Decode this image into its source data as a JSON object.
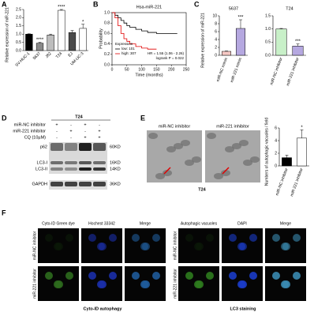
{
  "panel_labels": [
    "A",
    "B",
    "C",
    "D",
    "E",
    "F"
  ],
  "chart_data": [
    {
      "type": "bar",
      "ylabel": "Relative expression of miR-221",
      "categories": [
        "SV-HUC-1",
        "5637",
        "J82",
        "T24",
        "EJ",
        "UM-UC-3"
      ],
      "values": [
        1.0,
        0.45,
        0.95,
        2.45,
        1.1,
        1.35
      ],
      "errors": [
        0.02,
        0.05,
        0.05,
        0.05,
        0.12,
        0.25
      ],
      "colors": [
        "#000000",
        "#8a8a8a",
        "#bdbdbd",
        "#ffffff",
        "#4a4a4a",
        "#ffffff"
      ],
      "significance": [
        null,
        "****",
        null,
        "****",
        null,
        "*"
      ],
      "ylim": [
        0,
        2.5
      ],
      "yticks": [
        {
          "value": 0,
          "label": "0.0"
        },
        {
          "value": 0.5,
          "label": "0.5"
        },
        {
          "value": 1,
          "label": "1.0"
        },
        {
          "value": 1.5,
          "label": "1.5"
        },
        {
          "value": 2,
          "label": "2.0"
        },
        {
          "value": 2.5,
          "label": "2.5"
        }
      ]
    },
    {
      "type": "step",
      "title": "Hsa-miR-221",
      "ylabel": "Probability",
      "xlabel": "Time (months)",
      "xlim": [
        0,
        250
      ],
      "xticks": [
        0,
        50,
        100,
        150,
        200,
        250
      ],
      "ylim": [
        0,
        1
      ],
      "yticks": [
        {
          "value": 0,
          "label": "0.0"
        },
        {
          "value": 0.2,
          "label": "0.2"
        },
        {
          "value": 0.4,
          "label": "0.4"
        },
        {
          "value": 0.6,
          "label": "0.6"
        },
        {
          "value": 0.8,
          "label": "0.8"
        },
        {
          "value": 1,
          "label": "1.0"
        }
      ],
      "legend_title": "Expression",
      "series": [
        {
          "name": "low: 101",
          "color": "#000000",
          "x": [
            0,
            10,
            20,
            30,
            40,
            50,
            60,
            80,
            100,
            120,
            150,
            180,
            220
          ],
          "values": [
            1,
            0.95,
            0.9,
            0.85,
            0.8,
            0.75,
            0.72,
            0.68,
            0.65,
            0.62,
            0.6,
            0.6,
            0.6
          ]
        },
        {
          "name": "high: 307",
          "color": "#e00000",
          "x": [
            0,
            10,
            20,
            30,
            40,
            50,
            60,
            80,
            100,
            120,
            150
          ],
          "values": [
            1,
            0.9,
            0.75,
            0.6,
            0.5,
            0.45,
            0.4,
            0.35,
            0.32,
            0.3,
            0.3
          ]
        }
      ],
      "annotations": [
        "HR = 1.55 (1.06 - 2.26)",
        "logrank P = 0.022"
      ]
    },
    {
      "type": "bar",
      "title": "5637",
      "ylabel": "Relative expression of miR-221",
      "categories": [
        "miR-NC mimic",
        "miR-221 mimic"
      ],
      "values": [
        1,
        6.8
      ],
      "errors": [
        0.1,
        2.2
      ],
      "colors": [
        "#f4c7c3",
        "#b5a8e0"
      ],
      "significance": [
        null,
        "***"
      ],
      "ylim": [
        0,
        10
      ],
      "yticks": [
        0,
        2,
        4,
        6,
        8,
        10
      ]
    },
    {
      "type": "bar",
      "title": "T24",
      "categories": [
        "miR-NC inhibitor",
        "miR-221 inhibitor"
      ],
      "values": [
        1.0,
        0.35
      ],
      "errors": [
        0.02,
        0.08
      ],
      "colors": [
        "#c8f0c8",
        "#b5a8e0"
      ],
      "significance": [
        null,
        "***"
      ],
      "ylim": [
        0,
        1.5
      ],
      "yticks": [
        {
          "value": 0,
          "label": "0.0"
        },
        {
          "value": 0.5,
          "label": "0.5"
        },
        {
          "value": 1,
          "label": "1.0"
        },
        {
          "value": 1.5,
          "label": "1.5"
        }
      ]
    },
    {
      "type": "bar",
      "ylabel": "Numbers of autophagic vacuoles / field",
      "categories": [
        "miR-NC inhibitor",
        "miR-221 inhibitor"
      ],
      "values": [
        1.3,
        4.4
      ],
      "errors": [
        0.4,
        1.3
      ],
      "colors": [
        "#000000",
        "#ffffff"
      ],
      "significance": [
        null,
        "*"
      ],
      "ylim": [
        0,
        6
      ],
      "yticks": [
        0,
        2,
        4,
        6
      ]
    }
  ],
  "blot": {
    "group": "T24",
    "conditions": [
      {
        "label": "miR-NC inhibitor",
        "signs": [
          "+",
          "-",
          "+",
          "-"
        ]
      },
      {
        "label": "miR-221 inhibitor",
        "signs": [
          "-",
          "+",
          "-",
          "+"
        ]
      },
      {
        "label": "CQ (10µM)",
        "signs": [
          "-",
          "-",
          "+",
          "+"
        ]
      }
    ],
    "bands": [
      {
        "label": "p62",
        "size": "60KD"
      },
      {
        "label": "LC3-I",
        "size": "16KD"
      },
      {
        "label": "LC3-II",
        "size": "14KD"
      },
      {
        "label": "GAPDH",
        "size": "36KD"
      }
    ]
  },
  "tem": {
    "images": [
      "miR-NC inhibitor",
      "miR-221 inhibitor"
    ],
    "caption": "T24"
  },
  "fluorescence": [
    {
      "columns": [
        "Cyto-ID Green dye",
        "Hochest 33342",
        "Merge"
      ],
      "rows": [
        "miR-NC inhibitor",
        "miR-221 inhibitor"
      ],
      "caption": "Cyto-ID autophagy"
    },
    {
      "columns": [
        "Autophagic vacuoles",
        "DAPI",
        "Merge"
      ],
      "rows": [
        "miR-NC inhibitor",
        "miR-221 inhibitor"
      ],
      "caption": "LC3 staining"
    }
  ]
}
